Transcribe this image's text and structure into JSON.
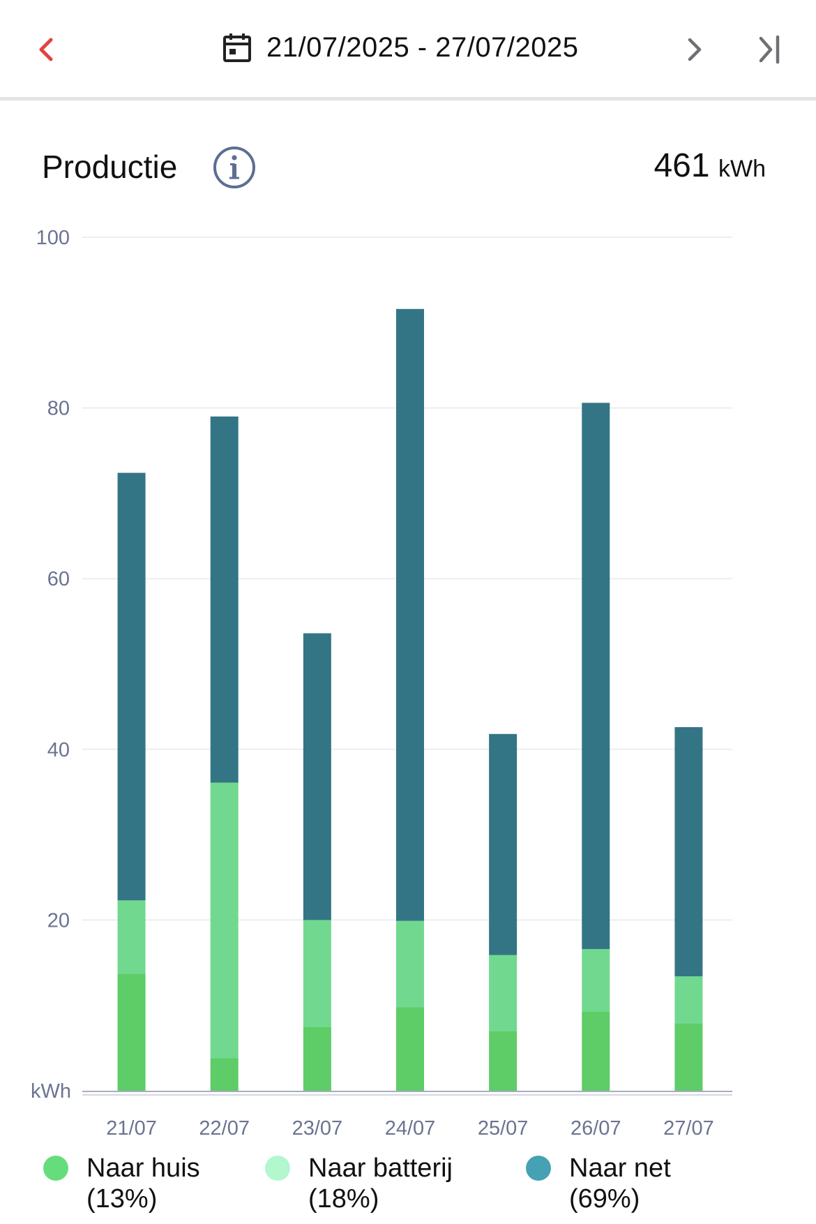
{
  "header": {
    "date_range": "21/07/2025 - 27/07/2025"
  },
  "production": {
    "title": "Productie",
    "total_value": "461",
    "total_unit": "kWh"
  },
  "colors": {
    "accent_red": "#e0443f",
    "grid": "#ecedf0",
    "axis": "#a7adbd",
    "tick_text": "#6b7390"
  },
  "icons": {
    "prev": "chevron-left-icon",
    "calendar": "calendar-icon",
    "next": "chevron-right-icon",
    "last": "skip-to-end-icon",
    "info": "info-icon"
  },
  "chart_data": {
    "type": "bar",
    "stacked": true,
    "categories": [
      "21/07",
      "22/07",
      "23/07",
      "24/07",
      "25/07",
      "26/07",
      "27/07"
    ],
    "ylim": [
      0,
      100
    ],
    "yticks": [
      20,
      40,
      60,
      80,
      100
    ],
    "ylabel": "kWh",
    "grid": true,
    "legend_position": "bottom",
    "series": [
      {
        "name": "Naar huis",
        "share": "(13%)",
        "color": "#5ecc67",
        "legend_color": "#66dd7d",
        "values": [
          13.7,
          3.8,
          7.5,
          9.8,
          7.0,
          9.3,
          7.9
        ]
      },
      {
        "name": "Naar batterij",
        "share": "(18%)",
        "color": "#70d98f",
        "legend_color": "#b2f7cd",
        "values": [
          8.6,
          32.3,
          12.5,
          10.1,
          8.9,
          7.3,
          5.5
        ]
      },
      {
        "name": "Naar net",
        "share": "(69%)",
        "color": "#347585",
        "legend_color": "#47a1b4",
        "values": [
          50.1,
          42.9,
          33.6,
          71.7,
          25.9,
          64.0,
          29.2
        ]
      }
    ]
  }
}
